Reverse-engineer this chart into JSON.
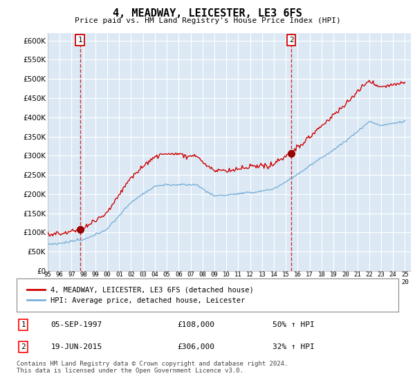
{
  "title": "4, MEADWAY, LEICESTER, LE3 6FS",
  "subtitle": "Price paid vs. HM Land Registry's House Price Index (HPI)",
  "sale1_year": 1997.708,
  "sale1_price": 108000,
  "sale1_label": "05-SEP-1997",
  "sale1_pct": "50% ↑ HPI",
  "sale2_year": 2015.458,
  "sale2_price": 306000,
  "sale2_label": "19-JUN-2015",
  "sale2_pct": "32% ↑ HPI",
  "hpi_color": "#7ab0d8",
  "price_color": "#cc0000",
  "dot_color": "#990000",
  "legend1": "4, MEADWAY, LEICESTER, LE3 6FS (detached house)",
  "legend2": "HPI: Average price, detached house, Leicester",
  "footer": "Contains HM Land Registry data © Crown copyright and database right 2024.\nThis data is licensed under the Open Government Licence v3.0.",
  "ylim_min": 0,
  "ylim_max": 620000,
  "plot_bg_color": "#dce9f5",
  "background_color": "#ffffff",
  "grid_color": "#ffffff"
}
